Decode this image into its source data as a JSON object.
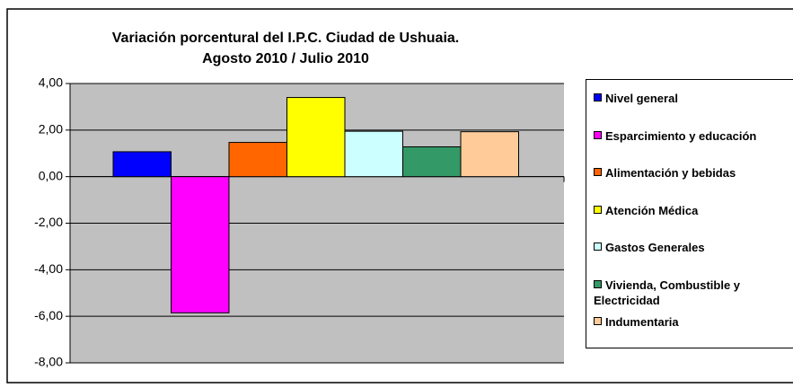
{
  "chart_data": {
    "type": "bar",
    "title": "Variación porcentural del I.P.C. Ciudad de Ushuaia.",
    "subtitle": "Agosto 2010 / Julio 2010",
    "categories": [
      null
    ],
    "series": [
      {
        "name": "Nivel general",
        "color": "#0000ff",
        "values": [
          1.07
        ]
      },
      {
        "name": "Esparcimiento y educación",
        "color": "#ff00ff",
        "values": [
          -5.85
        ]
      },
      {
        "name": "Alimentación y bebidas",
        "color": "#ff6600",
        "values": [
          1.47
        ]
      },
      {
        "name": "Atención Médica",
        "color": "#ffff00",
        "values": [
          3.4
        ]
      },
      {
        "name": "Gastos Generales",
        "color": "#ccffff",
        "values": [
          1.95
        ]
      },
      {
        "name": "Vivienda, Combustible y Electricidad",
        "color": "#339966",
        "values": [
          1.28
        ]
      },
      {
        "name": "Indumentaria",
        "color": "#ffcc99",
        "values": [
          1.93
        ]
      }
    ],
    "ylim": [
      -8,
      4
    ],
    "yticks": [
      {
        "value": -8,
        "label": "-8,00"
      },
      {
        "value": -6,
        "label": "-6,00"
      },
      {
        "value": -4,
        "label": "-4,00"
      },
      {
        "value": -2,
        "label": "-2,00"
      },
      {
        "value": 0,
        "label": "0,00"
      },
      {
        "value": 2,
        "label": "2,00"
      },
      {
        "value": 4,
        "label": "4,00"
      }
    ],
    "grid": true,
    "plot_background": "#c0c0c0"
  }
}
